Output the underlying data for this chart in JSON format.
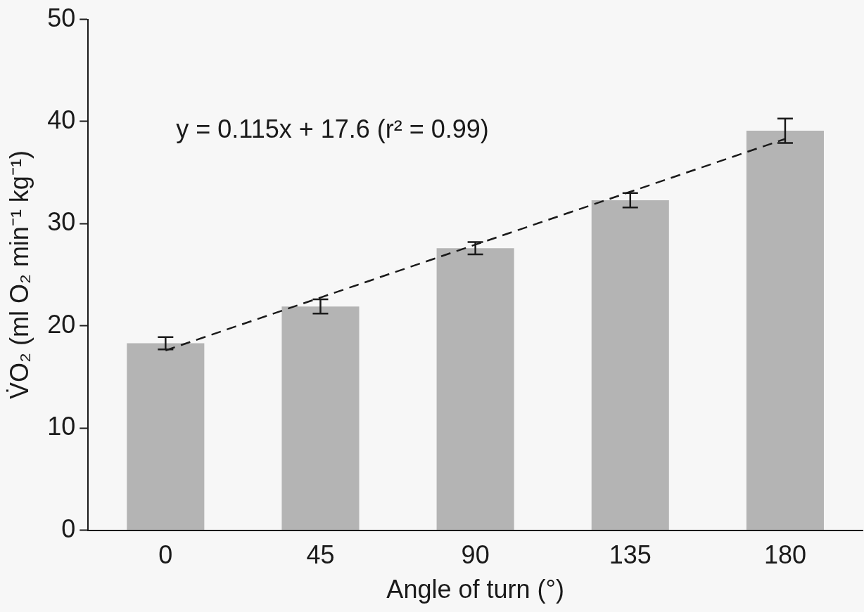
{
  "chart_data": {
    "type": "bar",
    "xlabel": "Angle of turn (°)",
    "ylabel": "V̇O₂ (ml O₂ min⁻¹ kg⁻¹)",
    "categories": [
      "0",
      "45",
      "90",
      "135",
      "180"
    ],
    "series": [
      {
        "color": "#b4b4b4",
        "values": [
          18.3,
          21.9,
          27.6,
          32.3,
          39.1
        ],
        "errors": [
          0.6,
          0.7,
          0.6,
          0.7,
          1.2
        ]
      },
      {
        "type": "line",
        "color": "#1a1a1a",
        "x": [
          "0",
          "180"
        ],
        "values": [
          17.6,
          38.3
        ],
        "line_style": "dashed",
        "marker": "none"
      }
    ],
    "ylim": [
      0,
      50
    ],
    "yticks": [
      0,
      10,
      20,
      30,
      40,
      50
    ],
    "grid": false,
    "legend": false,
    "annotations": [
      "y = 0.115x + 17.6 (r² = 0.99)"
    ]
  }
}
